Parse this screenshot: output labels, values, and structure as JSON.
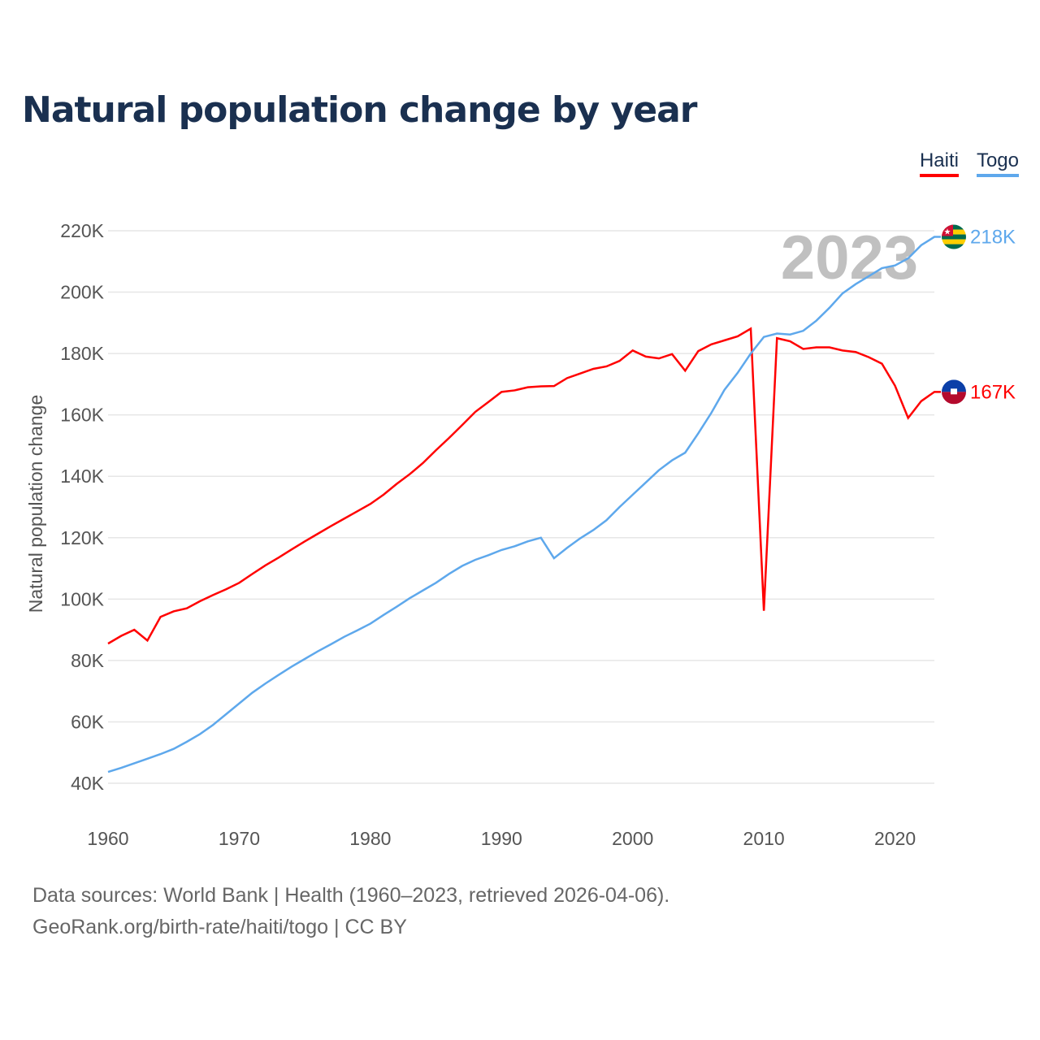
{
  "title": "Natural population change by year",
  "source_line1": "Data sources: World Bank | Health (1960–2023, retrieved 2026-04-06).",
  "source_line2": "GeoRank.org/birth-rate/haiti/togo | CC BY",
  "chart_data": {
    "type": "line",
    "title": "Natural population change by year",
    "xlabel": "",
    "ylabel": "Natural population change",
    "xlim": [
      1960,
      2023
    ],
    "ylim": [
      40000,
      220000
    ],
    "x_ticks": [
      1960,
      1970,
      1980,
      1990,
      2000,
      2010,
      2020
    ],
    "y_ticks": [
      40000,
      60000,
      80000,
      100000,
      120000,
      140000,
      160000,
      180000,
      200000,
      220000
    ],
    "y_tick_labels": [
      "40K",
      "60K",
      "80K",
      "100K",
      "120K",
      "140K",
      "160K",
      "180K",
      "200K",
      "220K"
    ],
    "watermark_year": "2023",
    "legend_position": "top-right",
    "grid": true,
    "x": [
      1960,
      1961,
      1962,
      1963,
      1964,
      1965,
      1966,
      1967,
      1968,
      1969,
      1970,
      1971,
      1972,
      1973,
      1974,
      1975,
      1976,
      1977,
      1978,
      1979,
      1980,
      1981,
      1982,
      1983,
      1984,
      1985,
      1986,
      1987,
      1988,
      1989,
      1990,
      1991,
      1992,
      1993,
      1994,
      1995,
      1996,
      1997,
      1998,
      1999,
      2000,
      2001,
      2002,
      2003,
      2004,
      2005,
      2006,
      2007,
      2008,
      2009,
      2010,
      2011,
      2012,
      2013,
      2014,
      2015,
      2016,
      2017,
      2018,
      2019,
      2020,
      2021,
      2022,
      2023
    ],
    "series": [
      {
        "name": "Haiti",
        "color": "#ff0000",
        "end_label": "167K",
        "flag": "haiti-flag-icon",
        "values": [
          85500,
          88000,
          90000,
          86500,
          94200,
          96000,
          97000,
          99300,
          101300,
          103200,
          105300,
          108200,
          111000,
          113500,
          116200,
          118800,
          121300,
          123800,
          126200,
          128600,
          131000,
          134000,
          137500,
          140700,
          144300,
          148500,
          152500,
          156700,
          161000,
          164200,
          167500,
          168000,
          169000,
          169300,
          169400,
          172000,
          173500,
          175000,
          175800,
          177600,
          181000,
          179000,
          178400,
          179800,
          174400,
          180800,
          183000,
          184300,
          185600,
          188100,
          96200,
          185000,
          184000,
          181500,
          182000,
          182000,
          181000,
          180500,
          178800,
          176700,
          169500,
          159000,
          164500,
          167500
        ]
      },
      {
        "name": "Togo",
        "color": "#5ea8ec",
        "end_label": "218K",
        "flag": "togo-flag-icon",
        "values": [
          43700,
          45000,
          46500,
          48000,
          49500,
          51200,
          53500,
          56000,
          59000,
          62500,
          66000,
          69500,
          72500,
          75300,
          78000,
          80500,
          83000,
          85300,
          87700,
          89800,
          92000,
          94800,
          97500,
          100300,
          102800,
          105300,
          108200,
          110800,
          112800,
          114300,
          116000,
          117200,
          118800,
          120000,
          113300,
          116700,
          119800,
          122500,
          125700,
          130000,
          134000,
          138000,
          142000,
          145200,
          147700,
          154000,
          160700,
          168200,
          173700,
          180000,
          185400,
          186500,
          186200,
          187400,
          190700,
          194900,
          199600,
          202600,
          205200,
          207800,
          208700,
          211000,
          215300,
          218000
        ]
      }
    ]
  }
}
